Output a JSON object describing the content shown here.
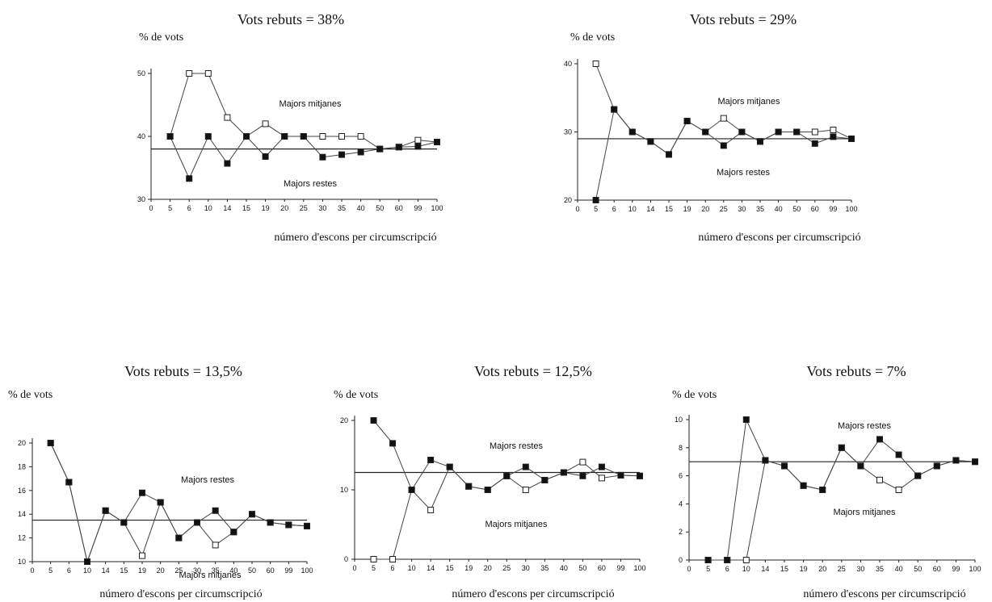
{
  "page": {
    "y_axis_unit": "% de vots",
    "x_axis_label": "número d'escons per circumscripció"
  },
  "chart_data": [
    {
      "type": "line",
      "title": "Vots rebuts  = 38%",
      "ylabel": "% de vots",
      "xlabel": "número d'escons per circumscripció",
      "ylim": [
        30,
        50
      ],
      "yticks": [
        "30",
        "40",
        "50"
      ],
      "categories": [
        "0",
        "5",
        "6",
        "10",
        "14",
        "15",
        "19",
        "20",
        "25",
        "30",
        "35",
        "40",
        "50",
        "60",
        "99",
        "100"
      ],
      "reference": 38,
      "annotations": [
        {
          "text": "Majors mitjanes",
          "position": "above"
        },
        {
          "text": "Majors restes",
          "position": "below"
        }
      ],
      "series": [
        {
          "name": "Majors mitjanes",
          "marker": "open",
          "values": [
            null,
            40,
            50,
            50,
            43,
            40,
            42,
            40,
            40,
            40,
            40,
            40,
            38,
            38.3,
            39.4,
            39.1
          ]
        },
        {
          "name": "Majors restes",
          "marker": "filled",
          "values": [
            null,
            40,
            33.3,
            40,
            35.7,
            40,
            36.8,
            40,
            40,
            36.7,
            37.1,
            37.5,
            38,
            38.3,
            38.4,
            39.1
          ]
        }
      ]
    },
    {
      "type": "line",
      "title": "Vots rebuts  = 29%",
      "ylabel": "% de vots",
      "xlabel": "número d'escons per circumscripció",
      "ylim": [
        20,
        40
      ],
      "yticks": [
        "20",
        "30",
        "40"
      ],
      "categories": [
        "0",
        "5",
        "6",
        "10",
        "14",
        "15",
        "19",
        "20",
        "25",
        "30",
        "35",
        "40",
        "50",
        "60",
        "99",
        "100"
      ],
      "reference": 29,
      "annotations": [
        {
          "text": "Majors mitjanes",
          "position": "above"
        },
        {
          "text": "Majors restes",
          "position": "below"
        }
      ],
      "series": [
        {
          "name": "Majors mitjanes",
          "marker": "open",
          "values": [
            null,
            40,
            33.3,
            30,
            28.6,
            26.7,
            31.6,
            30,
            32,
            30,
            28.6,
            30,
            30,
            30,
            30.3,
            29
          ]
        },
        {
          "name": "Majors restes",
          "marker": "filled",
          "values": [
            null,
            20,
            33.3,
            30,
            28.6,
            26.7,
            31.6,
            30,
            28,
            30,
            28.6,
            30,
            30,
            28.3,
            29.3,
            29
          ]
        }
      ]
    },
    {
      "type": "line",
      "title": "Vots rebuts  = 13,5%",
      "ylabel": "% de vots",
      "xlabel": "número d'escons per circumscripció",
      "ylim": [
        10,
        20
      ],
      "yticks": [
        "10",
        "12",
        "14",
        "16",
        "18",
        "20"
      ],
      "categories": [
        "0",
        "5",
        "6",
        "10",
        "14",
        "15",
        "19",
        "20",
        "25",
        "30",
        "35",
        "40",
        "50",
        "60",
        "99",
        "100"
      ],
      "reference": 13.5,
      "annotations": [
        {
          "text": "Majors restes",
          "position": "above"
        },
        {
          "text": "Majors mitjanes",
          "position": "below"
        }
      ],
      "series": [
        {
          "name": "Majors restes",
          "marker": "filled",
          "values": [
            null,
            20,
            16.7,
            10,
            14.3,
            13.3,
            15.8,
            15,
            12,
            13.3,
            14.3,
            12.5,
            14,
            13.3,
            13.1,
            13
          ]
        },
        {
          "name": "Majors mitjanes",
          "marker": "open",
          "values": [
            null,
            20,
            16.7,
            10,
            14.3,
            13.3,
            10.5,
            15,
            12,
            13.3,
            11.4,
            12.5,
            14,
            13.3,
            13.1,
            13
          ]
        }
      ]
    },
    {
      "type": "line",
      "title": "Vots rebuts  = 12,5%",
      "ylabel": "% de vots",
      "xlabel": "número d'escons per circumscripció",
      "ylim": [
        0,
        20
      ],
      "yticks": [
        "0",
        "10",
        "20"
      ],
      "categories": [
        "0",
        "5",
        "6",
        "10",
        "14",
        "15",
        "19",
        "20",
        "25",
        "30",
        "35",
        "40",
        "50",
        "60",
        "99",
        "100"
      ],
      "reference": 12.5,
      "annotations": [
        {
          "text": "Majors restes",
          "position": "above"
        },
        {
          "text": "Majors mitjanes",
          "position": "below"
        }
      ],
      "series": [
        {
          "name": "Majors restes",
          "marker": "filled",
          "values": [
            null,
            20,
            16.7,
            10,
            14.3,
            13.3,
            10.5,
            10,
            12,
            13.3,
            11.4,
            12.5,
            12,
            13.3,
            12.1,
            12
          ]
        },
        {
          "name": "Majors mitjanes",
          "marker": "open",
          "values": [
            null,
            0,
            0,
            10,
            7.1,
            13.3,
            10.5,
            10,
            12,
            10,
            11.4,
            12.5,
            14,
            11.7,
            12.1,
            12
          ]
        }
      ]
    },
    {
      "type": "line",
      "title": "Vots rebuts  = 7%",
      "ylabel": "% de vots",
      "xlabel": "número d'escons per circumscripció",
      "ylim": [
        0,
        10
      ],
      "yticks": [
        "0",
        "2",
        "4",
        "6",
        "8",
        "10"
      ],
      "categories": [
        "0",
        "5",
        "6",
        "10",
        "14",
        "15",
        "19",
        "20",
        "25",
        "30",
        "35",
        "40",
        "50",
        "60",
        "99",
        "100"
      ],
      "reference": 7,
      "annotations": [
        {
          "text": "Majors restes",
          "position": "above"
        },
        {
          "text": "Majors mitjanes",
          "position": "below"
        }
      ],
      "series": [
        {
          "name": "Majors restes",
          "marker": "filled",
          "values": [
            null,
            0,
            0,
            10,
            7.1,
            6.7,
            5.3,
            5,
            8,
            6.7,
            8.6,
            7.5,
            6,
            6.7,
            7.1,
            7
          ]
        },
        {
          "name": "Majors mitjanes",
          "marker": "open",
          "values": [
            null,
            0,
            0,
            0,
            7.1,
            6.7,
            5.3,
            5,
            8,
            6.7,
            5.7,
            5,
            6,
            6.7,
            7.1,
            7
          ]
        }
      ]
    }
  ]
}
